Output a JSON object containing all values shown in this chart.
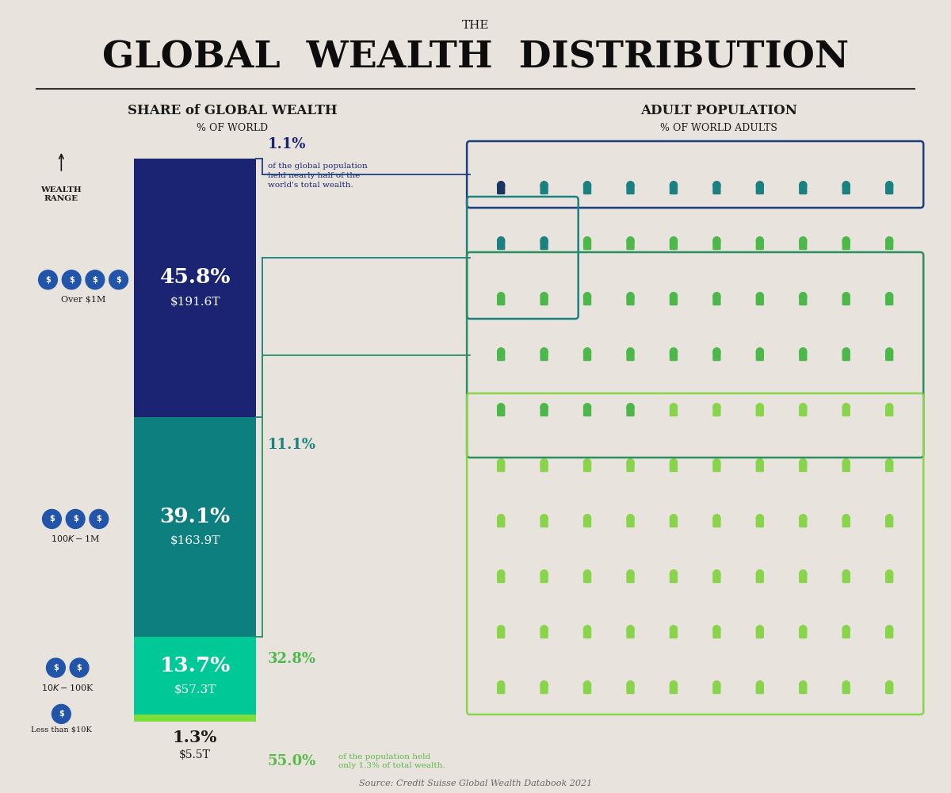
{
  "background_color": "#e8e4dd",
  "title_the": "THE",
  "title_main": "GLOBAL  WEALTH  DISTRIBUTION",
  "subtitle_left": "SHARE of GLOBAL WEALTH",
  "subtitle_left2": "% OF WORLD",
  "subtitle_right": "ADULT POPULATION",
  "subtitle_right2": "% OF WORLD ADULTS",
  "bar_segments": [
    {
      "label": "45.8%",
      "sublabel": "$191.6T",
      "value": 45.8,
      "color": "#1a2472"
    },
    {
      "label": "39.1%",
      "sublabel": "$163.9T",
      "value": 39.1,
      "color": "#0d7f7f"
    },
    {
      "label": "13.7%",
      "sublabel": "$57.3T",
      "value": 13.7,
      "color": "#00c896"
    },
    {
      "label": "1.3%",
      "sublabel": "$5.5T",
      "value": 1.3,
      "color": "#7cde3c"
    }
  ],
  "source_text": "Source: Credit Suisse Global Wealth Databook 2021",
  "wealth_range_label": "WEALTH\nRANGE",
  "icon_color_navy": "#1a3560",
  "icon_color_teal": "#1a8080",
  "icon_color_mgreen": "#4db84a",
  "icon_color_lgreen": "#88d44a"
}
